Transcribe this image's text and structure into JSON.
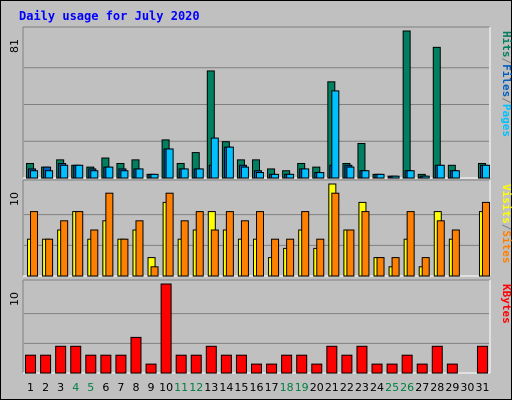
{
  "chart_data": {
    "title": "Daily usage for July 2020",
    "days": [
      "1",
      "2",
      "3",
      "4",
      "5",
      "6",
      "7",
      "8",
      "9",
      "10",
      "11",
      "12",
      "13",
      "14",
      "15",
      "16",
      "17",
      "18",
      "19",
      "20",
      "21",
      "22",
      "23",
      "24",
      "25",
      "26",
      "27",
      "28",
      "29",
      "30",
      "31"
    ],
    "weekend_days": [
      "4",
      "5",
      "11",
      "12",
      "18",
      "19",
      "25",
      "26"
    ],
    "panels": [
      {
        "type": "bar",
        "max_label": "81",
        "ylim": [
          0,
          81
        ],
        "legend": [
          "Pages",
          "/",
          "Files",
          "/",
          "Hits"
        ],
        "legend_colors": [
          "#00c0ff",
          "#808080",
          "#0060c0",
          "#808080",
          "#008060"
        ],
        "series": [
          {
            "name": "Hits",
            "color": "#008060",
            "values": [
              8,
              6,
              10,
              7,
              6,
              11,
              8,
              10,
              2,
              21,
              8,
              14,
              59,
              20,
              10,
              10,
              5,
              4,
              8,
              6,
              53,
              8,
              19,
              2,
              1,
              81,
              2,
              72,
              7,
              0,
              8
            ]
          },
          {
            "name": "Files",
            "color": "#0060c0",
            "values": [
              5,
              6,
              8,
              7,
              5,
              6,
              5,
              5,
              2,
              16,
              5,
              5,
              7,
              17,
              7,
              4,
              2,
              2,
              5,
              3,
              7,
              7,
              4,
              2,
              1,
              4,
              1,
              7,
              4,
              0,
              7
            ]
          },
          {
            "name": "Pages",
            "color": "#00c0ff",
            "values": [
              4,
              4,
              7,
              7,
              4,
              6,
              4,
              5,
              2,
              16,
              5,
              5,
              22,
              17,
              6,
              3,
              2,
              2,
              5,
              3,
              48,
              6,
              4,
              2,
              1,
              4,
              1,
              7,
              4,
              0,
              7
            ]
          }
        ]
      },
      {
        "type": "bar",
        "max_label": "10",
        "ylim": [
          0,
          10
        ],
        "legend": [
          "Sites",
          "/",
          "Visits"
        ],
        "legend_colors": [
          "#ff8000",
          "#808080",
          "#ffff00"
        ],
        "series": [
          {
            "name": "Visits",
            "color": "#ffff00",
            "values": [
              4,
              4,
              5,
              7,
              4,
              6,
              4,
              5,
              2,
              8,
              4,
              5,
              7,
              5,
              4,
              4,
              2,
              3,
              5,
              3,
              10,
              5,
              8,
              2,
              1,
              4,
              1,
              7,
              4,
              0,
              7
            ]
          },
          {
            "name": "Sites",
            "color": "#ff8000",
            "values": [
              7,
              4,
              6,
              7,
              5,
              9,
              4,
              6,
              1,
              9,
              6,
              7,
              5,
              7,
              6,
              7,
              4,
              4,
              7,
              4,
              9,
              5,
              7,
              2,
              2,
              7,
              2,
              6,
              5,
              0,
              8
            ]
          }
        ]
      },
      {
        "type": "bar",
        "max_label": "10",
        "ylim": [
          0,
          10
        ],
        "legend": [
          "KBytes"
        ],
        "legend_colors": [
          "#ff0000"
        ],
        "series": [
          {
            "name": "KBytes",
            "color": "#ff0000",
            "values": [
              2,
              2,
              3,
              3,
              2,
              2,
              2,
              4,
              1,
              10,
              2,
              2,
              3,
              2,
              2,
              1,
              1,
              2,
              2,
              1,
              3,
              2,
              3,
              1,
              1,
              2,
              1,
              3,
              1,
              0,
              3
            ]
          }
        ]
      }
    ]
  },
  "colors": {
    "background": "#c0c0c0",
    "title": "#0000ff",
    "tick": "#000000",
    "weekend_tick": "#008040",
    "gridline": "#808080"
  }
}
